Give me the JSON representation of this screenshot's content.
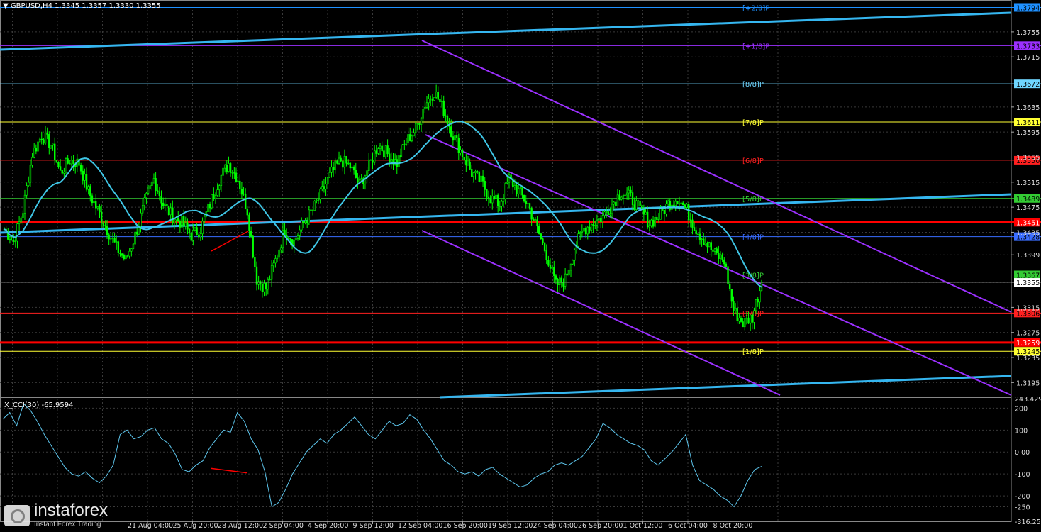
{
  "header": {
    "symbol_label": "▼ GBPUSD,H4 1.3345 1.3357 1.3330 1.3355"
  },
  "subwindow": {
    "label": "X_CCI(30) -65.9594"
  },
  "branding": {
    "logo_text": "instaforex",
    "tagline": "Instant Forex Trading"
  },
  "colors": {
    "background": "#000000",
    "grid": "#3a3a3a",
    "candles": "#00ff00",
    "ma": "#3fc6e6",
    "trend_lines": "#35b6f0",
    "channel": "#9b30ff",
    "support": "#ff0000",
    "cci": "#5ec7ee"
  },
  "chart_data": {
    "type": "candlestick",
    "price_axis": {
      "range": [
        1.3175,
        1.379
      ],
      "ticks": [
        "1.3755",
        "1.3715",
        "1.3635",
        "1.3595",
        "1.3555",
        "1.3515",
        "1.3475",
        "1.3435",
        "1.3399",
        "1.3355",
        "1.3315",
        "1.3275",
        "1.3235",
        "1.3195"
      ]
    },
    "time_axis": {
      "labels": [
        "21 Aug 04:00",
        "25 Aug 20:00",
        "28 Aug 12:00",
        "2 Sep 04:00",
        "4 Sep 20:00",
        "9 Sep 12:00",
        "12 Sep 04:00",
        "16 Sep 20:00",
        "19 Sep 12:00",
        "24 Sep 04:00",
        "26 Sep 20:00",
        "1 Oct 12:00",
        "6 Oct 04:00",
        "8 Oct 20:00"
      ]
    },
    "murrey_levels": [
      {
        "label": "[+2/8]P",
        "price": 1.3794,
        "price_label": "1.3794",
        "color": "#1e90ff"
      },
      {
        "label": "[+1/8]P",
        "price": 1.3733,
        "price_label": "1.3733",
        "color": "#9b30ff"
      },
      {
        "label": "[8/8]P",
        "price": 1.3672,
        "price_label": "1.3672",
        "color": "#6fd6ff"
      },
      {
        "label": "[7/8]P",
        "price": 1.3611,
        "price_label": "1.3611",
        "color": "#ffff33"
      },
      {
        "label": "[6/8]P",
        "price": 1.355,
        "price_label": "1.3550",
        "color": "#ff2020"
      },
      {
        "label": "[5/8]P",
        "price": 1.3489,
        "price_label": "1.3489",
        "color": "#33cc33"
      },
      {
        "label": "[4/8]P",
        "price": 1.3428,
        "price_label": "1.3428",
        "color": "#3a6dff"
      },
      {
        "label": "[3/8]P",
        "price": 1.3367,
        "price_label": "1.3367",
        "color": "#33cc33"
      },
      {
        "label": "[2/8]P",
        "price": 1.3306,
        "price_label": "1.3306",
        "color": "#ff2020"
      },
      {
        "label": "[1/8]P",
        "price": 1.3245,
        "price_label": "1.3245",
        "color": "#ffff33"
      }
    ],
    "support_levels": [
      {
        "price": 1.3451,
        "price_label": "1.3451"
      },
      {
        "price": 1.3259,
        "price_label": "1.3259"
      }
    ],
    "current_price": {
      "price": 1.3355,
      "price_label": "1.3355"
    },
    "close_series_approx": [
      1.344,
      1.342,
      1.347,
      1.356,
      1.359,
      1.3575,
      1.353,
      1.355,
      1.3545,
      1.35,
      1.347,
      1.344,
      1.341,
      1.339,
      1.343,
      1.348,
      1.352,
      1.348,
      1.346,
      1.345,
      1.343,
      1.344,
      1.348,
      1.352,
      1.3545,
      1.352,
      1.347,
      1.336,
      1.3345,
      1.339,
      1.344,
      1.342,
      1.345,
      1.347,
      1.35,
      1.353,
      1.355,
      1.354,
      1.351,
      1.354,
      1.3575,
      1.356,
      1.3545,
      1.358,
      1.36,
      1.364,
      1.366,
      1.363,
      1.359,
      1.356,
      1.353,
      1.3515,
      1.349,
      1.348,
      1.352,
      1.35,
      1.348,
      1.344,
      1.34,
      1.335,
      1.336,
      1.341,
      1.344,
      1.345,
      1.346,
      1.348,
      1.35,
      1.349,
      1.347,
      1.345,
      1.346,
      1.348,
      1.349,
      1.347,
      1.344,
      1.342,
      1.34,
      1.339,
      1.331,
      1.329,
      1.33,
      1.3355
    ],
    "cci": {
      "name": "X_CCI(30)",
      "last": -65.9594,
      "axis_ticks": [
        "243.429",
        "200",
        "100",
        "0.00",
        "-100",
        "-200",
        "-250",
        "-316.257"
      ],
      "range": [
        -316.257,
        243.429
      ],
      "values_approx": [
        150,
        180,
        120,
        220,
        190,
        140,
        80,
        30,
        -20,
        -70,
        -100,
        -110,
        -90,
        -120,
        -140,
        -110,
        -60,
        80,
        100,
        60,
        70,
        100,
        110,
        60,
        40,
        -10,
        -80,
        -90,
        -60,
        -40,
        20,
        60,
        100,
        90,
        180,
        140,
        60,
        10,
        -90,
        -250,
        -230,
        -170,
        -100,
        -50,
        0,
        30,
        60,
        40,
        80,
        100,
        130,
        160,
        120,
        80,
        60,
        100,
        140,
        120,
        130,
        170,
        150,
        100,
        60,
        10,
        -40,
        -60,
        -90,
        -100,
        -90,
        -110,
        -80,
        -70,
        -100,
        -120,
        -140,
        -160,
        -150,
        -120,
        -100,
        -90,
        -60,
        -50,
        -60,
        -40,
        -20,
        20,
        60,
        130,
        110,
        80,
        60,
        40,
        30,
        10,
        -40,
        -60,
        -30,
        0,
        40,
        80,
        -60,
        -130,
        -150,
        -170,
        -200,
        -220,
        -250,
        -200,
        -130,
        -80,
        -66
      ]
    }
  }
}
